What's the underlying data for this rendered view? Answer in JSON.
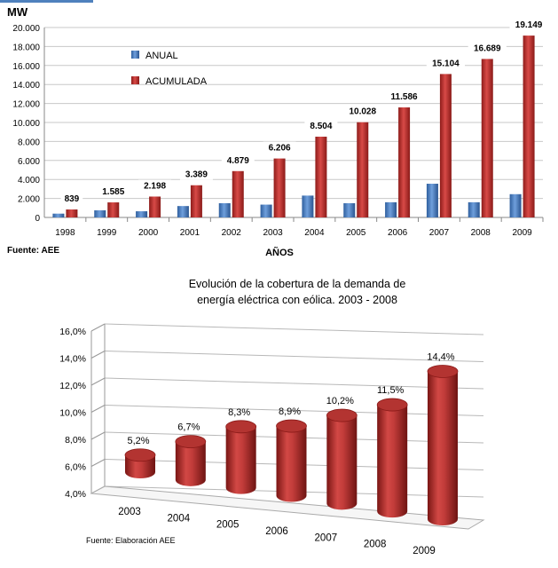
{
  "chart_data": [
    {
      "type": "bar",
      "title": "",
      "ylabel": "MW",
      "xlabel": "AÑOS",
      "source": "Fuente: AEE",
      "ylim": [
        0,
        20000
      ],
      "y_ticks": [
        "0",
        "2.000",
        "4.000",
        "6.000",
        "8.000",
        "10.000",
        "12.000",
        "14.000",
        "16.000",
        "18.000",
        "20.000"
      ],
      "categories": [
        "1998",
        "1999",
        "2000",
        "2001",
        "2002",
        "2003",
        "2004",
        "2005",
        "2006",
        "2007",
        "2008",
        "2009"
      ],
      "legend_position": "top-left",
      "grid": true,
      "series": [
        {
          "name": "ANUAL",
          "color": "#4f81bd",
          "values": [
            400,
            750,
            650,
            1200,
            1500,
            1350,
            2300,
            1500,
            1600,
            3550,
            1600,
            2450
          ]
        },
        {
          "name": "ACUMULADA",
          "color": "#c0504d",
          "values": [
            839,
            1585,
            2198,
            3389,
            4879,
            6206,
            8504,
            10028,
            11586,
            15104,
            16689,
            19149
          ],
          "labels": [
            "839",
            "1.585",
            "2.198",
            "3.389",
            "4.879",
            "6.206",
            "8.504",
            "10.028",
            "11.586",
            "15.104",
            "16.689",
            "19.149"
          ]
        }
      ]
    },
    {
      "type": "bar",
      "title": "Evolución de la cobertura de la demanda de energía eléctrica con eólica. 2003 - 2008",
      "title_lines": [
        "Evolución de la cobertura de la demanda de",
        "energía eléctrica con eólica. 2003 - 2008"
      ],
      "source": "Fuente: Elaboración AEE",
      "ylim": [
        4,
        16
      ],
      "y_ticks": [
        "4,0%",
        "6,0%",
        "8,0%",
        "10,0%",
        "12,0%",
        "14,0%",
        "16,0%"
      ],
      "categories": [
        "2003",
        "2004",
        "2005",
        "2006",
        "2007",
        "2008",
        "2009"
      ],
      "grid": true,
      "series": [
        {
          "color": "#c0504d",
          "values": [
            5.2,
            6.7,
            8.3,
            8.9,
            10.2,
            11.5,
            14.4
          ],
          "labels": [
            "5,2%",
            "6,7%",
            "8,3%",
            "8,9%",
            "10,2%",
            "11,5%",
            "14,4%"
          ]
        }
      ]
    }
  ]
}
